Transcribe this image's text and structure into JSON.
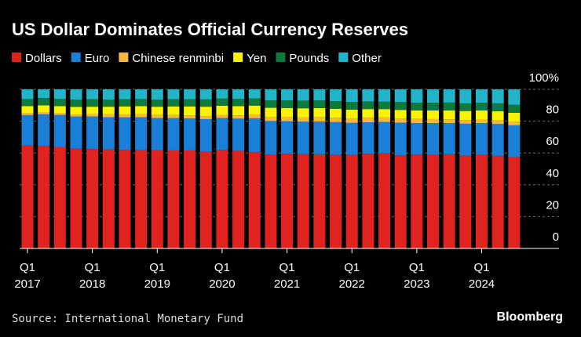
{
  "chart_data": {
    "type": "stacked_bar",
    "title": "US Dollar Dominates Official Currency Reserves",
    "source": "Source: International Monetary Fund",
    "brand": "Bloomberg",
    "categories": [
      {
        "quarter": "Q1",
        "year": "2017"
      },
      null,
      null,
      null,
      {
        "quarter": "Q1",
        "year": "2018"
      },
      null,
      null,
      null,
      {
        "quarter": "Q1",
        "year": "2019"
      },
      null,
      null,
      null,
      {
        "quarter": "Q1",
        "year": "2020"
      },
      null,
      null,
      null,
      {
        "quarter": "Q1",
        "year": "2021"
      },
      null,
      null,
      null,
      {
        "quarter": "Q1",
        "year": "2022"
      },
      null,
      null,
      null,
      {
        "quarter": "Q1",
        "year": "2023"
      },
      null,
      null,
      null,
      {
        "quarter": "Q1",
        "year": "2024"
      },
      null,
      null
    ],
    "series": [
      {
        "name": "Dollars",
        "color": "#e0231f",
        "values": [
          64.7,
          64.4,
          63.8,
          62.7,
          62.5,
          62.3,
          61.9,
          61.7,
          61.8,
          61.6,
          61.6,
          60.7,
          61.9,
          61.3,
          60.5,
          58.9,
          59.5,
          59.2,
          59.2,
          58.8,
          58.8,
          59.5,
          59.8,
          58.5,
          59.0,
          58.9,
          59.2,
          58.4,
          58.9,
          58.2,
          57.4
        ]
      },
      {
        "name": "Euro",
        "color": "#1a7fd6",
        "values": [
          19.1,
          19.9,
          20.1,
          20.2,
          20.4,
          20.2,
          20.5,
          20.7,
          20.2,
          20.3,
          20.1,
          20.6,
          20.1,
          20.3,
          21.3,
          21.2,
          20.5,
          20.5,
          20.6,
          20.6,
          20.1,
          19.8,
          19.7,
          20.5,
          19.8,
          19.9,
          19.6,
          20.0,
          19.9,
          20.0,
          20.0
        ]
      },
      {
        "name": "Chinese renminbi",
        "color": "#f7b840",
        "values": [
          1.1,
          1.1,
          1.1,
          1.2,
          1.4,
          1.8,
          1.8,
          1.9,
          1.9,
          2.0,
          2.0,
          1.9,
          2.0,
          2.1,
          2.1,
          2.3,
          2.4,
          2.6,
          2.6,
          2.8,
          2.9,
          2.9,
          2.8,
          2.6,
          2.6,
          2.5,
          2.4,
          2.3,
          2.2,
          2.2,
          2.1
        ]
      },
      {
        "name": "Yen",
        "color": "#f9f200",
        "values": [
          4.6,
          4.6,
          4.5,
          4.9,
          4.8,
          4.8,
          5.1,
          5.2,
          5.2,
          5.4,
          5.6,
          5.9,
          5.7,
          5.8,
          5.9,
          6.0,
          5.9,
          5.8,
          5.8,
          5.6,
          5.4,
          5.4,
          5.3,
          5.5,
          5.4,
          5.4,
          5.5,
          5.7,
          5.7,
          5.8,
          5.8
        ]
      },
      {
        "name": "Pounds",
        "color": "#0e7a3c",
        "values": [
          4.4,
          4.5,
          4.5,
          4.5,
          4.7,
          4.5,
          4.5,
          4.4,
          4.5,
          4.5,
          4.5,
          4.6,
          4.5,
          4.5,
          4.5,
          4.7,
          4.7,
          4.8,
          4.8,
          4.8,
          4.9,
          4.8,
          4.6,
          4.9,
          4.8,
          4.9,
          5.0,
          4.8,
          4.9,
          5.0,
          5.0
        ]
      },
      {
        "name": "Other",
        "color": "#22b5c9",
        "values": [
          6.1,
          5.5,
          6.0,
          6.5,
          6.2,
          6.4,
          6.2,
          6.1,
          6.4,
          6.2,
          6.2,
          6.3,
          5.8,
          6.0,
          5.7,
          6.9,
          7.0,
          7.1,
          7.0,
          7.4,
          7.9,
          7.6,
          7.8,
          8.0,
          8.4,
          8.4,
          8.3,
          8.8,
          8.4,
          8.8,
          9.7
        ]
      }
    ],
    "ylim": [
      0,
      100
    ],
    "yticks": [
      0,
      20,
      40,
      60,
      80,
      {
        "value": 100,
        "label": "100%"
      }
    ],
    "grid": true
  }
}
